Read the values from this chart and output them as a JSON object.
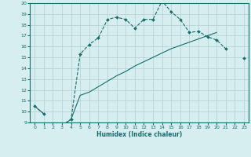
{
  "xlabel": "Humidex (Indice chaleur)",
  "bg_color": "#d6eef0",
  "grid_color": "#b8d4d8",
  "line_color": "#1a6b6b",
  "xlim": [
    -0.5,
    23.5
  ],
  "ylim": [
    9,
    20
  ],
  "xticks": [
    0,
    1,
    2,
    3,
    4,
    5,
    6,
    7,
    8,
    9,
    10,
    11,
    12,
    13,
    14,
    15,
    16,
    17,
    18,
    19,
    20,
    21,
    22,
    23
  ],
  "yticks": [
    9,
    10,
    11,
    12,
    13,
    14,
    15,
    16,
    17,
    18,
    19,
    20
  ],
  "line1_segments": [
    {
      "x": [
        0,
        1
      ],
      "y": [
        10.5,
        9.8
      ]
    },
    {
      "x": [
        3,
        4,
        5,
        6,
        7,
        8,
        9,
        10,
        11,
        12,
        13,
        14,
        15,
        16,
        17,
        18,
        19,
        20,
        21
      ],
      "y": [
        8.7,
        9.3,
        15.3,
        16.2,
        16.8,
        18.5,
        18.7,
        18.5,
        17.7,
        18.5,
        18.5,
        20.2,
        19.2,
        18.5,
        17.3,
        17.4,
        16.9,
        16.6,
        15.8
      ]
    },
    {
      "x": [
        23
      ],
      "y": [
        14.9
      ]
    }
  ],
  "line2_segments": [
    {
      "x": [
        0,
        1
      ],
      "y": [
        10.5,
        9.8
      ]
    },
    {
      "x": [
        3,
        4,
        5,
        6,
        7,
        8,
        9,
        10,
        11,
        12,
        13,
        14,
        15,
        16,
        17,
        18,
        19,
        20
      ],
      "y": [
        8.7,
        9.3,
        11.5,
        11.8,
        12.3,
        12.8,
        13.3,
        13.7,
        14.2,
        14.6,
        15.0,
        15.4,
        15.8,
        16.1,
        16.4,
        16.7,
        17.0,
        17.3
      ]
    },
    {
      "x": [
        23
      ],
      "y": [
        14.9
      ]
    }
  ]
}
